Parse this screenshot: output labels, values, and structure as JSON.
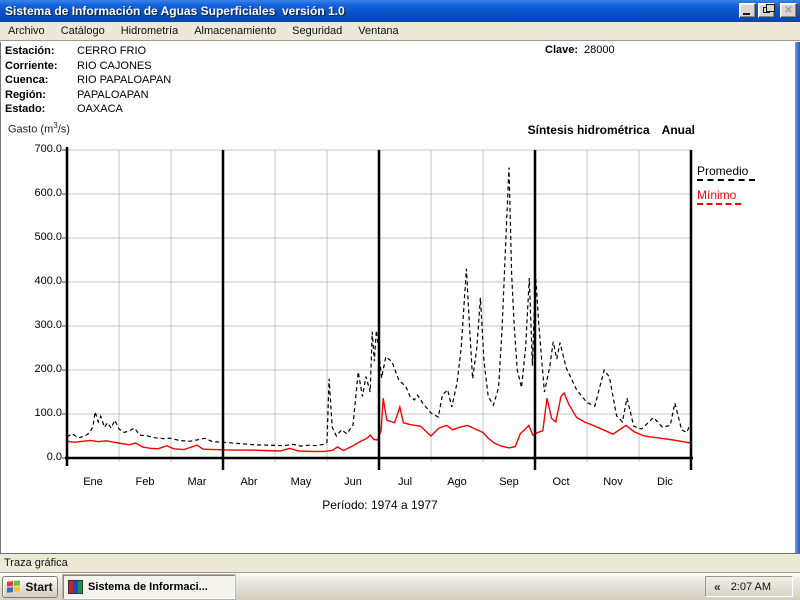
{
  "window": {
    "title": "Sistema de Información de Aguas Superficiales  versión 1.0",
    "controls": {
      "minimize_glyph": "",
      "restore_glyph": "",
      "close_glyph": "✕"
    }
  },
  "menu": {
    "items": [
      "Archivo",
      "Catálogo",
      "Hidrometría",
      "Almacenamiento",
      "Seguridad",
      "Ventana"
    ]
  },
  "station_info": {
    "fields": [
      {
        "label": "Estación:",
        "value": "CERRO FRIO"
      },
      {
        "label": "Corriente:",
        "value": "RIO CAJONES"
      },
      {
        "label": "Cuenca:",
        "value": "RIO PAPALOAPAN"
      },
      {
        "label": "Región:",
        "value": "PAPALOAPAN"
      },
      {
        "label": "Estado:",
        "value": "OAXACA"
      }
    ],
    "clave_label": "Clave:",
    "clave_value": "28000"
  },
  "chart_header": {
    "y_unit_prefix": "Gasto (m",
    "y_unit_sup": "3",
    "y_unit_suffix": "/s)",
    "title": "Síntesis hidrométrica",
    "mode": "Anual"
  },
  "chart_data": {
    "type": "line",
    "title": "Síntesis hidrométrica Anual",
    "ylabel": "Gasto (m3/s)",
    "ylim": [
      0,
      700
    ],
    "ytick_values": [
      0,
      100,
      200,
      300,
      400,
      500,
      600,
      700
    ],
    "categories": [
      "Ene",
      "Feb",
      "Mar",
      "Abr",
      "May",
      "Jun",
      "Jul",
      "Ago",
      "Sep",
      "Oct",
      "Nov",
      "Dic"
    ],
    "grid": true,
    "legend_position": "right",
    "separators_after_month": [
      3,
      6,
      9
    ],
    "period_label": "Período: 1974 a 1977",
    "series": [
      {
        "name": "Promedio",
        "color": "#000000",
        "style": "dashed",
        "points": [
          [
            0.0,
            48
          ],
          [
            0.1,
            55
          ],
          [
            0.22,
            46
          ],
          [
            0.35,
            50
          ],
          [
            0.44,
            58
          ],
          [
            0.5,
            72
          ],
          [
            0.54,
            105
          ],
          [
            0.6,
            82
          ],
          [
            0.65,
            95
          ],
          [
            0.72,
            70
          ],
          [
            0.78,
            80
          ],
          [
            0.85,
            68
          ],
          [
            0.92,
            86
          ],
          [
            1.0,
            66
          ],
          [
            1.1,
            58
          ],
          [
            1.2,
            62
          ],
          [
            1.3,
            68
          ],
          [
            1.4,
            52
          ],
          [
            1.55,
            50
          ],
          [
            1.7,
            46
          ],
          [
            1.85,
            44
          ],
          [
            2.0,
            45
          ],
          [
            2.15,
            40
          ],
          [
            2.35,
            38
          ],
          [
            2.55,
            42
          ],
          [
            2.65,
            45
          ],
          [
            2.8,
            37
          ],
          [
            3.0,
            36
          ],
          [
            3.3,
            33
          ],
          [
            3.6,
            30
          ],
          [
            3.9,
            29
          ],
          [
            4.15,
            28
          ],
          [
            4.35,
            31
          ],
          [
            4.5,
            27
          ],
          [
            4.65,
            29
          ],
          [
            4.8,
            28
          ],
          [
            4.92,
            31
          ],
          [
            5.0,
            36
          ],
          [
            5.04,
            180
          ],
          [
            5.1,
            70
          ],
          [
            5.18,
            50
          ],
          [
            5.28,
            64
          ],
          [
            5.38,
            55
          ],
          [
            5.5,
            75
          ],
          [
            5.6,
            196
          ],
          [
            5.68,
            140
          ],
          [
            5.75,
            185
          ],
          [
            5.83,
            150
          ],
          [
            5.87,
            287
          ],
          [
            5.91,
            220
          ],
          [
            5.95,
            290
          ],
          [
            6.0,
            238
          ],
          [
            6.05,
            182
          ],
          [
            6.13,
            230
          ],
          [
            6.25,
            219
          ],
          [
            6.38,
            177
          ],
          [
            6.52,
            162
          ],
          [
            6.6,
            139
          ],
          [
            6.68,
            132
          ],
          [
            6.74,
            143
          ],
          [
            6.84,
            125
          ],
          [
            7.0,
            102
          ],
          [
            7.14,
            93
          ],
          [
            7.22,
            143
          ],
          [
            7.32,
            155
          ],
          [
            7.4,
            116
          ],
          [
            7.5,
            170
          ],
          [
            7.58,
            250
          ],
          [
            7.68,
            430
          ],
          [
            7.74,
            300
          ],
          [
            7.8,
            180
          ],
          [
            7.88,
            250
          ],
          [
            7.95,
            364
          ],
          [
            8.02,
            220
          ],
          [
            8.1,
            140
          ],
          [
            8.2,
            120
          ],
          [
            8.3,
            160
          ],
          [
            8.37,
            300
          ],
          [
            8.44,
            500
          ],
          [
            8.5,
            660
          ],
          [
            8.55,
            420
          ],
          [
            8.6,
            300
          ],
          [
            8.66,
            200
          ],
          [
            8.74,
            160
          ],
          [
            8.82,
            250
          ],
          [
            8.89,
            409
          ],
          [
            8.95,
            210
          ],
          [
            9.01,
            420
          ],
          [
            9.07,
            310
          ],
          [
            9.13,
            220
          ],
          [
            9.18,
            150
          ],
          [
            9.28,
            205
          ],
          [
            9.35,
            264
          ],
          [
            9.42,
            225
          ],
          [
            9.48,
            262
          ],
          [
            9.6,
            205
          ],
          [
            9.8,
            155
          ],
          [
            10.0,
            126
          ],
          [
            10.15,
            118
          ],
          [
            10.33,
            200
          ],
          [
            10.43,
            184
          ],
          [
            10.57,
            96
          ],
          [
            10.68,
            82
          ],
          [
            10.77,
            136
          ],
          [
            10.9,
            72
          ],
          [
            11.05,
            66
          ],
          [
            11.28,
            92
          ],
          [
            11.45,
            70
          ],
          [
            11.6,
            74
          ],
          [
            11.69,
            125
          ],
          [
            11.82,
            64
          ],
          [
            11.92,
            58
          ],
          [
            12.0,
            82
          ]
        ]
      },
      {
        "name": "Mínimo",
        "color": "#FF0000",
        "style": "solid",
        "points": [
          [
            0.0,
            38
          ],
          [
            0.15,
            36
          ],
          [
            0.3,
            38
          ],
          [
            0.45,
            40
          ],
          [
            0.6,
            37
          ],
          [
            0.75,
            39
          ],
          [
            0.9,
            36
          ],
          [
            1.05,
            33
          ],
          [
            1.2,
            30
          ],
          [
            1.32,
            34
          ],
          [
            1.45,
            25
          ],
          [
            1.6,
            22
          ],
          [
            1.75,
            21
          ],
          [
            1.92,
            28
          ],
          [
            2.05,
            21
          ],
          [
            2.25,
            19
          ],
          [
            2.5,
            29
          ],
          [
            2.62,
            20
          ],
          [
            2.85,
            19
          ],
          [
            3.15,
            18
          ],
          [
            3.5,
            18
          ],
          [
            3.8,
            17
          ],
          [
            4.1,
            16
          ],
          [
            4.28,
            22
          ],
          [
            4.45,
            16
          ],
          [
            4.7,
            15
          ],
          [
            4.95,
            15
          ],
          [
            5.1,
            17
          ],
          [
            5.2,
            25
          ],
          [
            5.32,
            17
          ],
          [
            5.5,
            28
          ],
          [
            5.65,
            38
          ],
          [
            5.77,
            45
          ],
          [
            5.83,
            52
          ],
          [
            5.9,
            42
          ],
          [
            5.97,
            41
          ],
          [
            6.04,
            62
          ],
          [
            6.08,
            136
          ],
          [
            6.15,
            86
          ],
          [
            6.3,
            80
          ],
          [
            6.4,
            116
          ],
          [
            6.47,
            80
          ],
          [
            6.6,
            76
          ],
          [
            6.8,
            72
          ],
          [
            7.0,
            50
          ],
          [
            7.15,
            68
          ],
          [
            7.3,
            74
          ],
          [
            7.42,
            64
          ],
          [
            7.55,
            70
          ],
          [
            7.7,
            74
          ],
          [
            7.85,
            66
          ],
          [
            8.0,
            58
          ],
          [
            8.1,
            45
          ],
          [
            8.22,
            34
          ],
          [
            8.35,
            27
          ],
          [
            8.5,
            23
          ],
          [
            8.62,
            26
          ],
          [
            8.72,
            56
          ],
          [
            8.8,
            64
          ],
          [
            8.88,
            74
          ],
          [
            8.96,
            52
          ],
          [
            9.05,
            58
          ],
          [
            9.15,
            62
          ],
          [
            9.23,
            136
          ],
          [
            9.32,
            90
          ],
          [
            9.4,
            82
          ],
          [
            9.5,
            140
          ],
          [
            9.56,
            148
          ],
          [
            9.65,
            122
          ],
          [
            9.8,
            92
          ],
          [
            9.95,
            82
          ],
          [
            10.2,
            70
          ],
          [
            10.5,
            54
          ],
          [
            10.75,
            74
          ],
          [
            10.9,
            60
          ],
          [
            11.1,
            50
          ],
          [
            11.35,
            46
          ],
          [
            11.6,
            42
          ],
          [
            11.85,
            37
          ],
          [
            12.0,
            34
          ]
        ]
      }
    ]
  },
  "status_bar": {
    "text": "Traza gráfica"
  },
  "taskbar": {
    "start_label": "Start",
    "task_button_label": "Sistema de Informaci...",
    "tray_chevron": "«",
    "clock": "2:07 AM"
  },
  "colors": {
    "titlebar_blue": "#0A4FC4",
    "grid_gray": "#C6C6C6",
    "flag_red": "#E33E2B",
    "flag_green": "#6DBE45",
    "flag_blue": "#2E6CD8",
    "flag_yellow": "#F8C32C"
  }
}
